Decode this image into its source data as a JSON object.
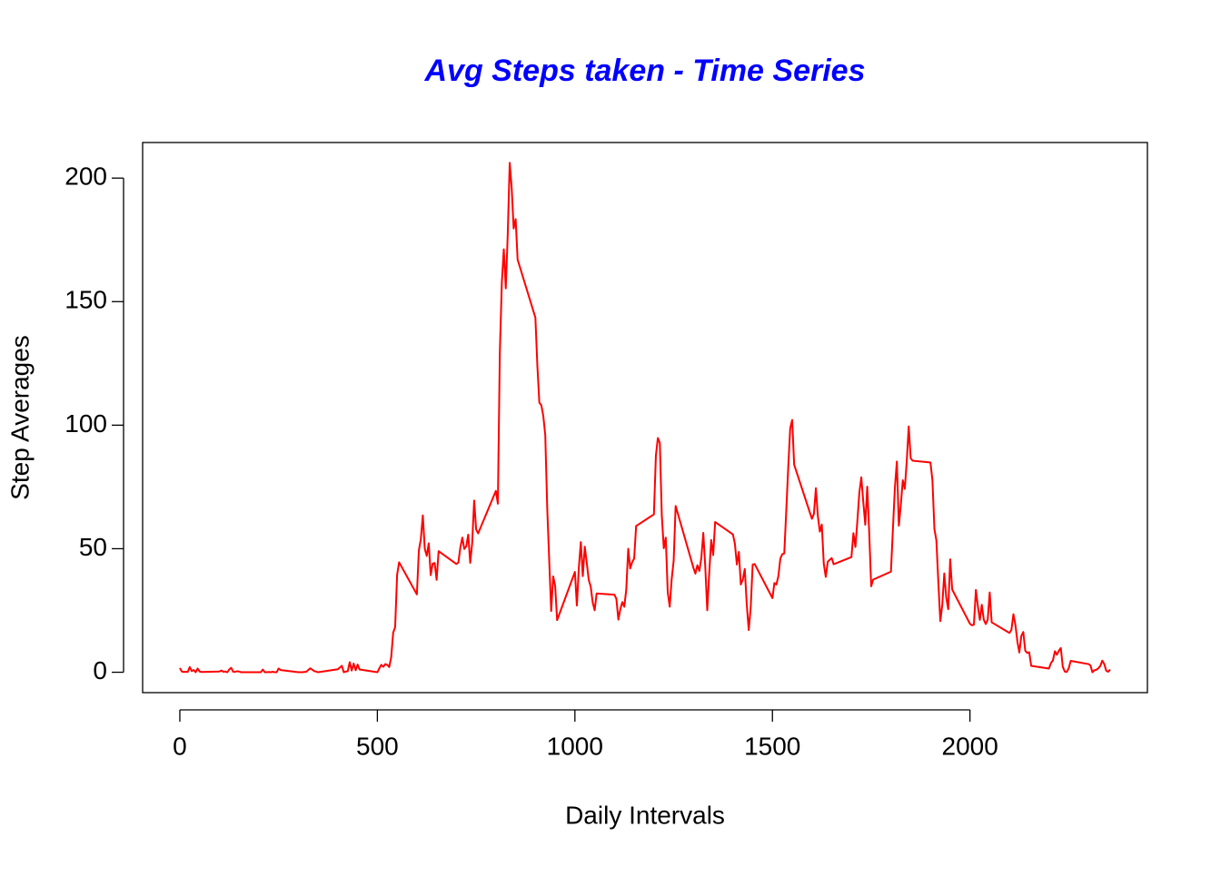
{
  "chart_data": {
    "type": "line",
    "title": "Avg Steps taken - Time Series",
    "xlabel": "Daily Intervals",
    "ylabel": "Step Averages",
    "x": [
      0,
      5,
      10,
      15,
      20,
      25,
      30,
      35,
      40,
      45,
      50,
      55,
      100,
      105,
      110,
      115,
      120,
      125,
      130,
      135,
      140,
      145,
      150,
      155,
      200,
      205,
      210,
      215,
      220,
      225,
      230,
      235,
      240,
      245,
      250,
      255,
      300,
      310,
      320,
      330,
      340,
      350,
      400,
      410,
      415,
      420,
      425,
      430,
      435,
      440,
      445,
      450,
      455,
      500,
      505,
      510,
      515,
      520,
      525,
      530,
      535,
      540,
      545,
      550,
      555,
      600,
      605,
      610,
      615,
      620,
      625,
      630,
      635,
      640,
      645,
      650,
      655,
      700,
      705,
      710,
      715,
      720,
      725,
      730,
      735,
      740,
      745,
      750,
      755,
      800,
      805,
      810,
      815,
      820,
      825,
      830,
      835,
      840,
      845,
      850,
      855,
      900,
      905,
      910,
      915,
      920,
      925,
      930,
      935,
      940,
      945,
      950,
      955,
      1000,
      1005,
      1010,
      1015,
      1020,
      1025,
      1030,
      1035,
      1040,
      1045,
      1050,
      1055,
      1100,
      1105,
      1110,
      1115,
      1120,
      1125,
      1130,
      1135,
      1140,
      1145,
      1150,
      1155,
      1200,
      1205,
      1210,
      1215,
      1220,
      1225,
      1230,
      1235,
      1240,
      1245,
      1250,
      1255,
      1300,
      1305,
      1310,
      1315,
      1320,
      1325,
      1330,
      1335,
      1340,
      1345,
      1350,
      1355,
      1400,
      1405,
      1410,
      1415,
      1420,
      1425,
      1430,
      1435,
      1440,
      1445,
      1450,
      1455,
      1500,
      1505,
      1510,
      1515,
      1520,
      1525,
      1530,
      1535,
      1540,
      1545,
      1550,
      1555,
      1600,
      1605,
      1610,
      1615,
      1620,
      1625,
      1630,
      1635,
      1640,
      1645,
      1650,
      1655,
      1700,
      1705,
      1710,
      1715,
      1720,
      1725,
      1730,
      1735,
      1740,
      1745,
      1750,
      1755,
      1800,
      1805,
      1810,
      1815,
      1820,
      1825,
      1830,
      1835,
      1840,
      1845,
      1850,
      1855,
      1900,
      1905,
      1910,
      1915,
      1920,
      1925,
      1930,
      1935,
      1940,
      1945,
      1950,
      1955,
      2000,
      2005,
      2010,
      2015,
      2020,
      2025,
      2030,
      2035,
      2040,
      2045,
      2050,
      2055,
      2100,
      2105,
      2110,
      2115,
      2120,
      2125,
      2130,
      2135,
      2140,
      2145,
      2150,
      2155,
      2200,
      2205,
      2210,
      2215,
      2220,
      2225,
      2230,
      2235,
      2240,
      2245,
      2250,
      2255,
      2300,
      2305,
      2310,
      2315,
      2320,
      2325,
      2330,
      2335,
      2340,
      2345,
      2350,
      2355
    ],
    "series": [
      {
        "name": "Step Averages",
        "color": "#ff0000",
        "values": [
          1.7,
          0.3,
          0.1,
          0.2,
          0.1,
          2.1,
          0.5,
          0.9,
          0,
          1.5,
          0.3,
          0.1,
          0.3,
          0.7,
          0.2,
          0.3,
          0,
          1.1,
          1.8,
          0.2,
          0.2,
          0.4,
          0.3,
          0,
          0,
          0,
          1.1,
          0,
          0,
          0.1,
          0,
          0.2,
          0,
          0,
          1.5,
          0.9,
          0,
          0,
          0.2,
          1.6,
          0.5,
          0,
          1.2,
          2.6,
          0,
          0.3,
          0.4,
          4.1,
          0.7,
          3.5,
          0.8,
          3.1,
          1.1,
          0,
          1.6,
          3.0,
          2.2,
          3.3,
          3.0,
          2.1,
          6.1,
          16.0,
          18.3,
          39.5,
          44.5,
          31.5,
          49.3,
          53.8,
          63.5,
          50.0,
          47.1,
          52.2,
          39.3,
          44.0,
          44.2,
          37.4,
          49.0,
          43.8,
          44.4,
          50.5,
          54.5,
          49.9,
          51.0,
          55.7,
          44.3,
          52.3,
          69.5,
          57.8,
          56.2,
          73.4,
          68.2,
          129.4,
          157.5,
          171.2,
          155.4,
          177.3,
          206.2,
          195.9,
          179.6,
          183.4,
          167.0,
          143.5,
          124.0,
          109.1,
          108.1,
          103.7,
          96.0,
          66.2,
          45.2,
          24.8,
          38.8,
          35.0,
          21.1,
          40.6,
          27.0,
          42.4,
          52.7,
          38.9,
          50.8,
          44.3,
          37.4,
          34.7,
          28.3,
          25.1,
          31.9,
          31.4,
          29.7,
          21.3,
          25.5,
          28.4,
          26.5,
          33.4,
          50.0,
          42.0,
          44.6,
          46.0,
          59.2,
          63.9,
          87.7,
          94.8,
          92.8,
          63.4,
          50.2,
          54.5,
          32.4,
          26.5,
          37.7,
          45.1,
          67.3,
          42.3,
          39.9,
          43.3,
          41.0,
          46.2,
          56.4,
          42.8,
          25.1,
          40.0,
          53.5,
          47.4,
          60.8,
          55.8,
          52.0,
          43.6,
          48.7,
          35.5,
          37.5,
          41.8,
          27.5,
          17.1,
          26.1,
          43.6,
          43.8,
          30.0,
          36.1,
          35.5,
          38.8,
          46.0,
          47.8,
          48.1,
          65.3,
          82.9,
          98.7,
          102.1,
          84.0,
          62.1,
          64.1,
          74.5,
          63.2,
          56.9,
          59.8,
          43.9,
          38.6,
          44.7,
          45.5,
          46.2,
          43.7,
          46.6,
          56.3,
          50.7,
          61.2,
          72.7,
          78.9,
          68.9,
          59.7,
          75.1,
          56.5,
          34.8,
          37.5,
          40.7,
          58.0,
          74.7,
          85.3,
          59.3,
          67.8,
          77.7,
          74.2,
          85.3,
          99.5,
          86.6,
          85.6,
          84.9,
          77.8,
          58.0,
          53.4,
          36.3,
          20.7,
          27.4,
          40.0,
          30.2,
          25.5,
          45.7,
          33.5,
          19.6,
          19.0,
          19.3,
          33.3,
          26.8,
          21.2,
          27.3,
          21.3,
          19.5,
          21.3,
          32.3,
          20.2,
          15.9,
          17.2,
          23.5,
          19.2,
          12.5,
          8.0,
          14.7,
          16.3,
          8.7,
          7.8,
          8.1,
          2.6,
          1.5,
          3.7,
          4.8,
          8.5,
          7.1,
          8.7,
          9.8,
          2.2,
          0.3,
          0.1,
          1.6,
          4.6,
          3.3,
          2.8,
          0,
          0.8,
          1.0,
          1.6,
          2.6,
          4.7,
          3.3,
          0.6,
          0.2,
          1.1
        ]
      }
    ],
    "xlim": [
      -94.2,
      2449.2
    ],
    "ylim": [
      -8.25,
      214.4
    ],
    "xticks": [
      0,
      500,
      1000,
      1500,
      2000
    ],
    "yticks": [
      0,
      50,
      100,
      150,
      200
    ]
  }
}
